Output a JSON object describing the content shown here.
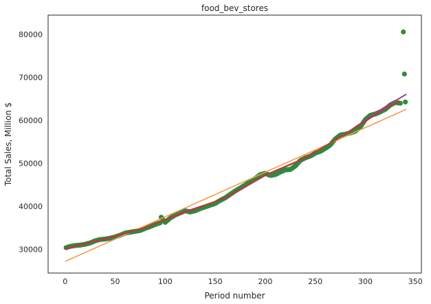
{
  "chart_data": {
    "type": "scatter",
    "title": "food_bev_stores",
    "xlabel": "Period number",
    "ylabel": "Total Sales, Million $",
    "xlim": [
      -17,
      356
    ],
    "ylim": [
      24500,
      84500
    ],
    "xticks": [
      0,
      50,
      100,
      150,
      200,
      250,
      300,
      350
    ],
    "yticks": [
      30000,
      40000,
      50000,
      60000,
      70000,
      80000
    ],
    "xtick_labels": [
      "0",
      "50",
      "100",
      "150",
      "200",
      "250",
      "300",
      "350"
    ],
    "ytick_labels": [
      "30000",
      "40000",
      "50000",
      "60000",
      "70000",
      "80000"
    ],
    "grid": false,
    "colors": {
      "points": "#2e8b3e",
      "linear_fit": "#f39c4a",
      "smooth_fit": "#9b3d9b",
      "trend_red": "#c0392b",
      "axis": "#262626"
    },
    "series": [
      {
        "type": "scatter",
        "color": "#2e8b3e",
        "x": [
          1,
          5,
          10,
          15,
          20,
          25,
          30,
          35,
          40,
          45,
          50,
          55,
          60,
          65,
          70,
          75,
          80,
          85,
          90,
          95,
          96,
          100,
          105,
          110,
          115,
          120,
          125,
          130,
          135,
          140,
          145,
          150,
          155,
          160,
          165,
          170,
          175,
          180,
          185,
          190,
          195,
          200,
          205,
          210,
          215,
          220,
          225,
          230,
          235,
          240,
          245,
          250,
          255,
          260,
          265,
          270,
          275,
          280,
          285,
          290,
          295,
          300,
          305,
          310,
          315,
          320,
          325,
          330,
          335,
          338,
          339,
          340
        ],
        "y": [
          30400,
          30700,
          30900,
          31000,
          31200,
          31500,
          32000,
          32300,
          32400,
          32600,
          32900,
          33300,
          33800,
          34000,
          34200,
          34400,
          34900,
          35300,
          35800,
          36200,
          37500,
          36300,
          37300,
          38000,
          38500,
          39000,
          38700,
          39000,
          39500,
          39900,
          40300,
          40700,
          41400,
          42000,
          42800,
          43600,
          44300,
          45000,
          45800,
          46500,
          47400,
          47700,
          47200,
          47400,
          48000,
          48500,
          48600,
          49400,
          50700,
          51300,
          51700,
          52400,
          52800,
          53500,
          54300,
          55700,
          56600,
          56800,
          57100,
          57500,
          58500,
          60200,
          61200,
          61500,
          62000,
          62600,
          63600,
          64200,
          64000,
          80600,
          70800,
          64300
        ]
      },
      {
        "type": "line",
        "color": "#f39c4a",
        "x": [
          0,
          341
        ],
        "y": [
          27200,
          62600
        ]
      },
      {
        "type": "line",
        "color": "#9b3d9b",
        "x": [
          0,
          40,
          80,
          120,
          160,
          200,
          240,
          280,
          320,
          341
        ],
        "y": [
          30100,
          32400,
          35000,
          38800,
          41900,
          47200,
          51200,
          56900,
          63200,
          66100
        ]
      },
      {
        "type": "line",
        "color": "#c0392b",
        "x": [
          0,
          40,
          80,
          120,
          160,
          200,
          240,
          280,
          320,
          335
        ],
        "y": [
          30200,
          32500,
          35100,
          38600,
          42000,
          47300,
          51300,
          56800,
          62800,
          64400
        ]
      }
    ]
  }
}
